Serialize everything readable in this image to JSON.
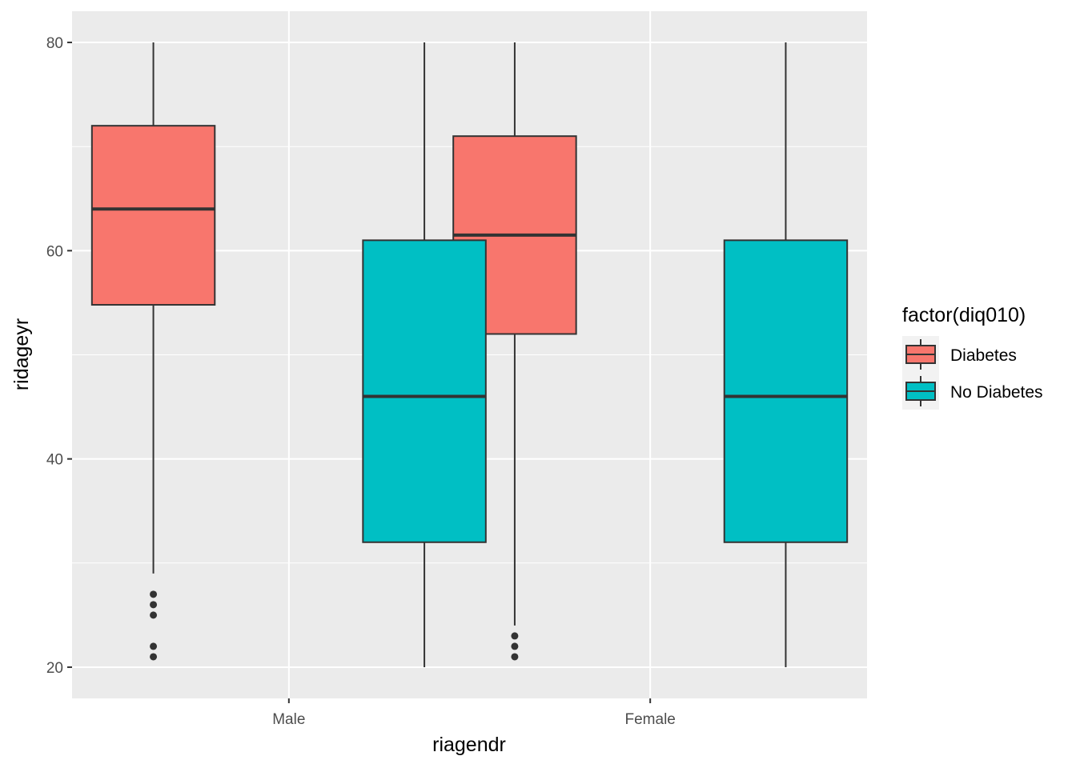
{
  "chart_data": {
    "type": "boxplot",
    "xlabel": "riagendr",
    "ylabel": "ridageyr",
    "categories": [
      "Male",
      "Female"
    ],
    "ylim": [
      17,
      83
    ],
    "yticks": [
      20,
      40,
      60,
      80
    ],
    "grid": true,
    "legend": {
      "title": "factor(diq010)",
      "position": "right",
      "entries": [
        "Diabetes",
        "No Diabetes"
      ]
    },
    "series": [
      {
        "name": "Diabetes",
        "color": "#F8766D",
        "boxes": [
          {
            "category": "Male",
            "min": 29,
            "q1": 54.8,
            "median": 64,
            "q3": 72,
            "max": 80,
            "outliers": [
              21,
              22,
              25,
              26,
              27
            ]
          },
          {
            "category": "Female",
            "min": 24,
            "q1": 52,
            "median": 61.5,
            "q3": 71,
            "max": 80,
            "outliers": [
              21,
              22,
              23
            ]
          }
        ]
      },
      {
        "name": "No Diabetes",
        "color": "#00BFC4",
        "boxes": [
          {
            "category": "Male",
            "min": 20,
            "q1": 32,
            "median": 46,
            "q3": 61,
            "max": 80,
            "outliers": []
          },
          {
            "category": "Female",
            "min": 20,
            "q1": 32,
            "median": 46,
            "q3": 61,
            "max": 80,
            "outliers": []
          }
        ]
      }
    ]
  }
}
